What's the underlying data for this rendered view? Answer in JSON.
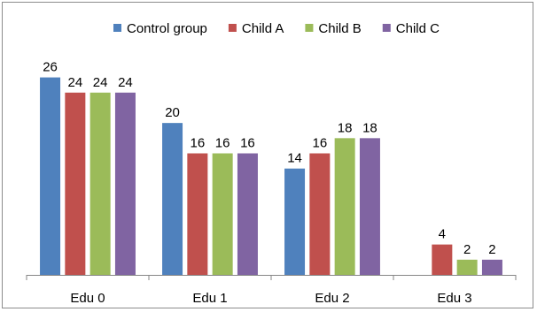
{
  "chart_data": {
    "type": "bar",
    "categories": [
      "Edu 0",
      "Edu 1",
      "Edu 2",
      "Edu 3"
    ],
    "series": [
      {
        "name": "Control group",
        "color": "#4F81BD",
        "values": [
          26,
          20,
          14,
          null
        ]
      },
      {
        "name": "Child A",
        "color": "#C0504D",
        "values": [
          24,
          16,
          16,
          4
        ]
      },
      {
        "name": "Child B",
        "color": "#9BBB59",
        "values": [
          24,
          16,
          18,
          2
        ]
      },
      {
        "name": "Child C",
        "color": "#8064A2",
        "values": [
          24,
          16,
          18,
          2
        ]
      }
    ],
    "ylim": [
      0,
      27
    ],
    "grid": false,
    "legend_position": "top"
  }
}
